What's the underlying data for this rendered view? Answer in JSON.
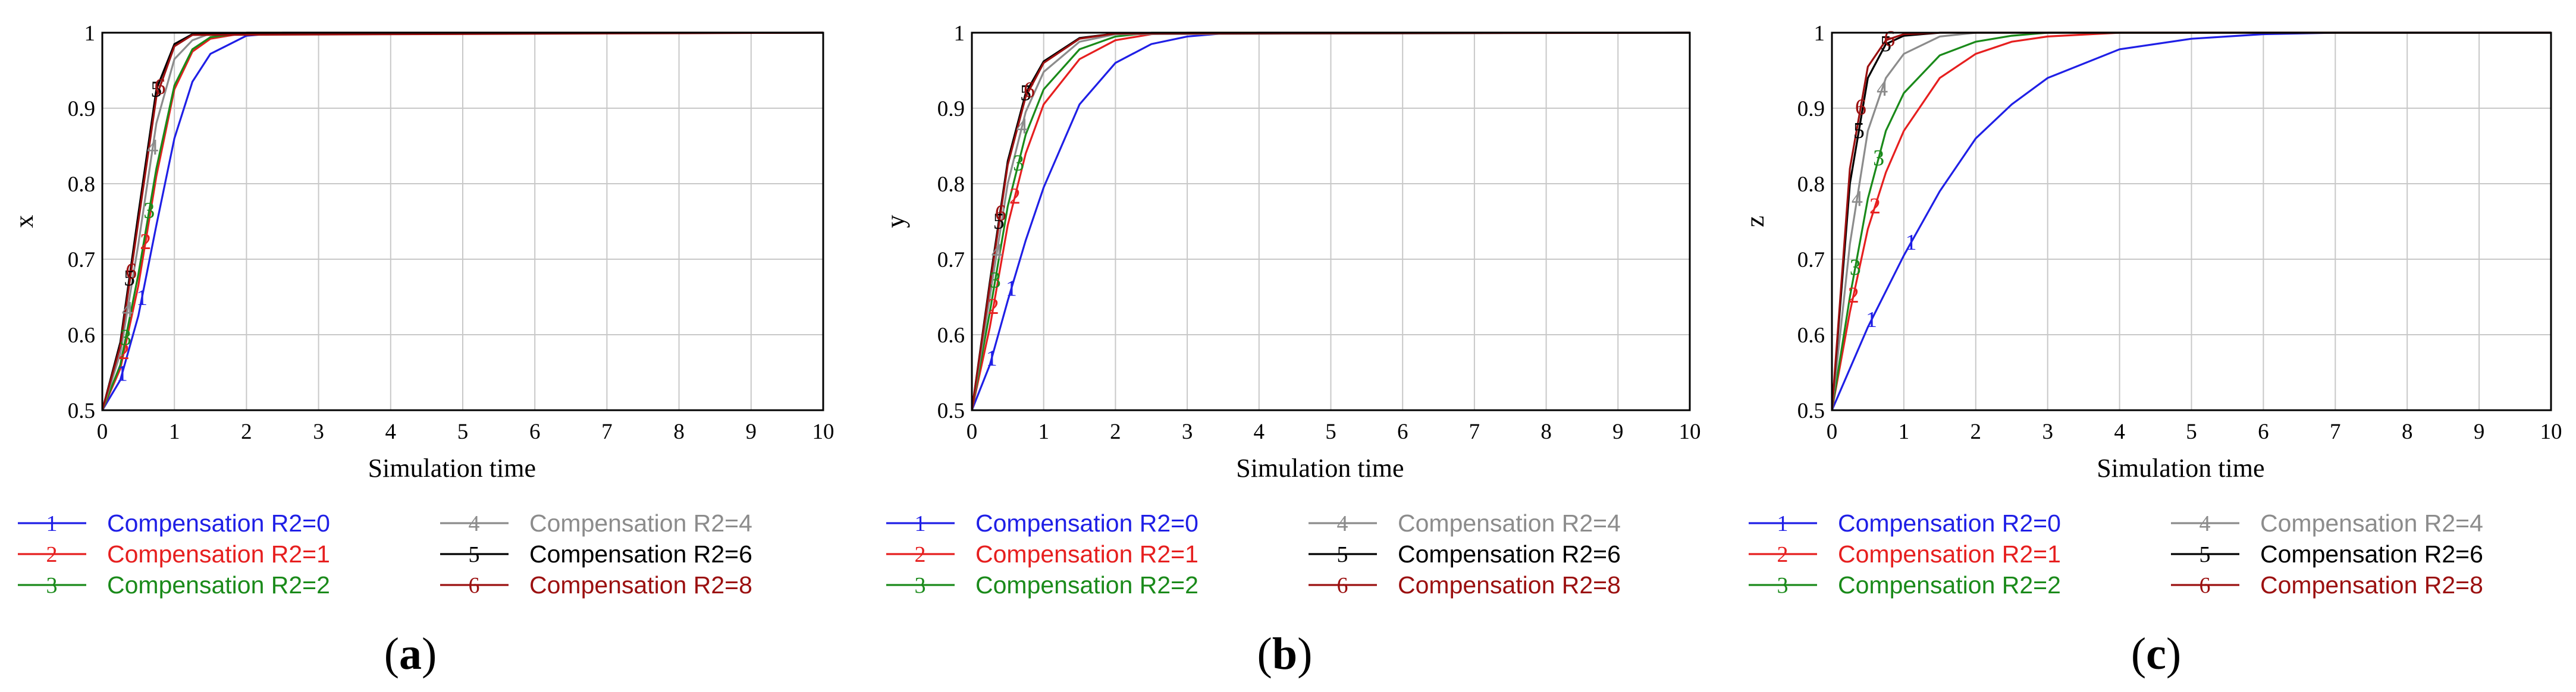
{
  "series_styles": [
    {
      "marker": "1",
      "color": "#1f1fe6"
    },
    {
      "marker": "2",
      "color": "#e61f1f"
    },
    {
      "marker": "3",
      "color": "#1a8a1a"
    },
    {
      "marker": "4",
      "color": "#8c8c8c"
    },
    {
      "marker": "5",
      "color": "#000000"
    },
    {
      "marker": "6",
      "color": "#9b1010"
    }
  ],
  "chart_data": [
    {
      "type": "line",
      "panel_label": "a",
      "xlabel": "Simulation time",
      "ylabel": "x",
      "xlim": [
        0,
        10
      ],
      "ylim": [
        0.5,
        1
      ],
      "xticks": [
        "0",
        "1",
        "2",
        "3",
        "4",
        "5",
        "6",
        "7",
        "8",
        "9",
        "10"
      ],
      "yticks": [
        "0.5",
        "0.6",
        "0.7",
        "0.8",
        "0.9",
        "1"
      ],
      "grid": true,
      "series": [
        {
          "name": "Compensation R2=0",
          "marker": "1",
          "x": [
            0,
            0.25,
            0.5,
            0.75,
            1.0,
            1.25,
            1.5,
            2.0,
            2.5,
            3.0,
            10
          ],
          "y": [
            0.5,
            0.54,
            0.625,
            0.745,
            0.86,
            0.935,
            0.972,
            0.996,
            1,
            1,
            1
          ]
        },
        {
          "name": "Compensation R2=1",
          "marker": "2",
          "x": [
            0,
            0.25,
            0.5,
            0.75,
            1.0,
            1.25,
            1.5,
            2.0,
            10
          ],
          "y": [
            0.5,
            0.555,
            0.665,
            0.81,
            0.925,
            0.975,
            0.992,
            1,
            1
          ]
        },
        {
          "name": "Compensation R2=2",
          "marker": "3",
          "x": [
            0,
            0.25,
            0.5,
            0.75,
            1.0,
            1.25,
            1.5,
            2.0,
            10
          ],
          "y": [
            0.5,
            0.56,
            0.68,
            0.82,
            0.93,
            0.978,
            0.994,
            1,
            1
          ]
        },
        {
          "name": "Compensation R2=4",
          "marker": "4",
          "x": [
            0,
            0.25,
            0.5,
            0.75,
            1.0,
            1.25,
            1.5,
            10
          ],
          "y": [
            0.5,
            0.575,
            0.72,
            0.88,
            0.965,
            0.99,
            0.999,
            1
          ]
        },
        {
          "name": "Compensation R2=6",
          "marker": "5",
          "x": [
            0,
            0.25,
            0.5,
            0.75,
            1.0,
            1.25,
            10
          ],
          "y": [
            0.5,
            0.59,
            0.76,
            0.925,
            0.985,
            0.998,
            1
          ]
        },
        {
          "name": "Compensation R2=8",
          "marker": "6",
          "x": [
            0,
            0.25,
            0.5,
            0.75,
            1.0,
            1.25,
            10
          ],
          "y": [
            0.5,
            0.585,
            0.75,
            0.915,
            0.982,
            0.997,
            1
          ]
        }
      ]
    },
    {
      "type": "line",
      "panel_label": "b",
      "xlabel": "Simulation time",
      "ylabel": "y",
      "xlim": [
        0,
        10
      ],
      "ylim": [
        0.5,
        1
      ],
      "xticks": [
        "0",
        "1",
        "2",
        "3",
        "4",
        "5",
        "6",
        "7",
        "8",
        "9",
        "10"
      ],
      "yticks": [
        "0.5",
        "0.6",
        "0.7",
        "0.8",
        "0.9",
        "1"
      ],
      "grid": true,
      "series": [
        {
          "name": "Compensation R2=0",
          "marker": "1",
          "x": [
            0,
            0.25,
            0.5,
            0.75,
            1.0,
            1.5,
            2.0,
            2.5,
            3.0,
            3.5,
            4.0,
            10
          ],
          "y": [
            0.5,
            0.56,
            0.645,
            0.725,
            0.795,
            0.905,
            0.96,
            0.985,
            0.995,
            0.999,
            1,
            1
          ]
        },
        {
          "name": "Compensation R2=1",
          "marker": "2",
          "x": [
            0,
            0.25,
            0.5,
            0.75,
            1.0,
            1.5,
            2.0,
            2.5,
            3.0,
            10
          ],
          "y": [
            0.5,
            0.61,
            0.745,
            0.84,
            0.905,
            0.965,
            0.99,
            0.998,
            1,
            1
          ]
        },
        {
          "name": "Compensation R2=2",
          "marker": "3",
          "x": [
            0,
            0.25,
            0.5,
            0.75,
            1.0,
            1.5,
            2.0,
            2.5,
            10
          ],
          "y": [
            0.5,
            0.63,
            0.77,
            0.865,
            0.925,
            0.978,
            0.995,
            1,
            1
          ]
        },
        {
          "name": "Compensation R2=4",
          "marker": "4",
          "x": [
            0,
            0.25,
            0.5,
            0.75,
            1.0,
            1.5,
            2.0,
            10
          ],
          "y": [
            0.5,
            0.65,
            0.8,
            0.895,
            0.948,
            0.988,
            0.998,
            1
          ]
        },
        {
          "name": "Compensation R2=6",
          "marker": "5",
          "x": [
            0,
            0.25,
            0.5,
            0.75,
            1.0,
            1.5,
            2.0,
            10
          ],
          "y": [
            0.5,
            0.67,
            0.83,
            0.92,
            0.962,
            0.993,
            0.999,
            1
          ]
        },
        {
          "name": "Compensation R2=8",
          "marker": "6",
          "x": [
            0,
            0.25,
            0.5,
            0.75,
            1.0,
            1.5,
            2.0,
            10
          ],
          "y": [
            0.5,
            0.665,
            0.825,
            0.915,
            0.96,
            0.992,
            0.999,
            1
          ]
        }
      ]
    },
    {
      "type": "line",
      "panel_label": "c",
      "xlabel": "Simulation time",
      "ylabel": "z",
      "xlim": [
        0,
        10
      ],
      "ylim": [
        0.5,
        1
      ],
      "xticks": [
        "0",
        "1",
        "2",
        "3",
        "4",
        "5",
        "6",
        "7",
        "8",
        "9",
        "10"
      ],
      "yticks": [
        "0.5",
        "0.6",
        "0.7",
        "0.8",
        "0.9",
        "1"
      ],
      "grid": true,
      "series": [
        {
          "name": "Compensation R2=0",
          "marker": "1",
          "x": [
            0,
            0.5,
            1.0,
            1.5,
            2.0,
            2.5,
            3.0,
            4.0,
            5.0,
            6.0,
            7.0,
            10
          ],
          "y": [
            0.5,
            0.61,
            0.705,
            0.79,
            0.86,
            0.905,
            0.94,
            0.978,
            0.992,
            0.998,
            1,
            1
          ]
        },
        {
          "name": "Compensation R2=1",
          "marker": "2",
          "x": [
            0,
            0.25,
            0.5,
            0.75,
            1.0,
            1.5,
            2.0,
            2.5,
            3.0,
            4.0,
            10
          ],
          "y": [
            0.5,
            0.63,
            0.74,
            0.815,
            0.87,
            0.94,
            0.972,
            0.988,
            0.995,
            1,
            1
          ]
        },
        {
          "name": "Compensation R2=2",
          "marker": "3",
          "x": [
            0,
            0.25,
            0.5,
            0.75,
            1.0,
            1.5,
            2.0,
            2.5,
            3.0,
            10
          ],
          "y": [
            0.5,
            0.65,
            0.78,
            0.87,
            0.92,
            0.97,
            0.988,
            0.996,
            1,
            1
          ]
        },
        {
          "name": "Compensation R2=4",
          "marker": "4",
          "x": [
            0,
            0.25,
            0.5,
            0.75,
            1.0,
            1.5,
            2.0,
            10
          ],
          "y": [
            0.5,
            0.72,
            0.87,
            0.94,
            0.972,
            0.995,
            1,
            1
          ]
        },
        {
          "name": "Compensation R2=6",
          "marker": "5",
          "x": [
            0,
            0.25,
            0.5,
            0.75,
            1.0,
            1.5,
            10
          ],
          "y": [
            0.5,
            0.8,
            0.94,
            0.985,
            0.996,
            1,
            1
          ]
        },
        {
          "name": "Compensation R2=8",
          "marker": "6",
          "x": [
            0,
            0.25,
            0.5,
            0.75,
            1.0,
            1.5,
            10
          ],
          "y": [
            0.5,
            0.82,
            0.955,
            0.99,
            0.998,
            1,
            1
          ]
        }
      ]
    }
  ]
}
